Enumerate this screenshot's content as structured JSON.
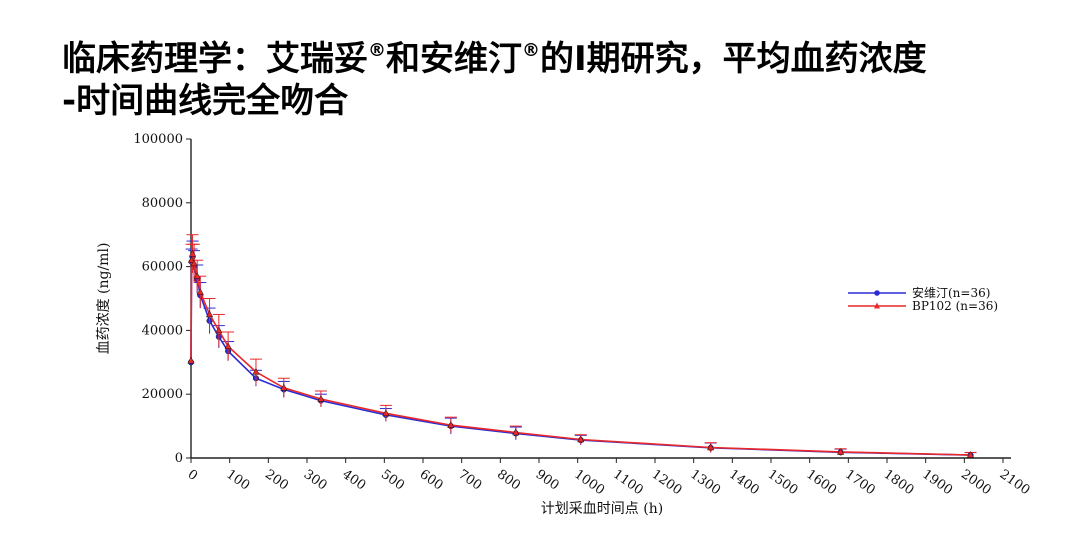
{
  "slide": {
    "title_line1_a": "临床药理学：艾瑞妥",
    "title_line1_b": "和安维汀",
    "title_line1_c": "的I期研究，平均血药浓度",
    "title_line2": "-时间曲线完全吻合",
    "registered_mark": "®"
  },
  "chart_data": {
    "type": "line",
    "title": "",
    "xlabel": "计划采血时间点 (h)",
    "ylabel": "血药浓度 (ng/ml)",
    "xlim": [
      0,
      2100
    ],
    "ylim": [
      0,
      100000
    ],
    "x_ticks": [
      0,
      100,
      200,
      300,
      400,
      500,
      600,
      700,
      800,
      900,
      1000,
      1100,
      1200,
      1300,
      1400,
      1500,
      1600,
      1700,
      1800,
      1900,
      2000,
      2100
    ],
    "y_ticks": [
      0,
      20000,
      40000,
      60000,
      80000,
      100000
    ],
    "grid": false,
    "legend_position": "right",
    "series": [
      {
        "name": "安维汀(n=36)",
        "color": "#2b2bd6",
        "marker": "circle",
        "x": [
          0,
          1.5,
          4,
          8,
          16,
          24,
          48,
          72,
          96,
          168,
          240,
          336,
          504,
          672,
          840,
          1008,
          1344,
          1680,
          2016
        ],
        "y": [
          30000,
          61500,
          63000,
          60000,
          56000,
          51000,
          43000,
          38000,
          33500,
          25000,
          21500,
          18000,
          13500,
          10000,
          7700,
          5600,
          3200,
          1800,
          900
        ],
        "error": [
          0,
          4000,
          5000,
          5000,
          4500,
          4000,
          4000,
          3500,
          3000,
          2500,
          2500,
          2000,
          2000,
          2500,
          2000,
          1500,
          1500,
          1000,
          800
        ]
      },
      {
        "name": "BP102 (n=36)",
        "color": "#e8282a",
        "marker": "triangle",
        "x": [
          0,
          1.5,
          4,
          8,
          16,
          24,
          48,
          72,
          96,
          168,
          240,
          336,
          504,
          672,
          840,
          1008,
          1344,
          1680,
          2016
        ],
        "y": [
          30500,
          62000,
          64000,
          61000,
          57000,
          52000,
          45000,
          40000,
          35000,
          27000,
          22000,
          18500,
          14000,
          10300,
          8000,
          5800,
          3300,
          1900,
          950
        ],
        "error": [
          0,
          5000,
          6000,
          6000,
          5000,
          5000,
          5000,
          5000,
          4500,
          4000,
          3000,
          2500,
          2500,
          2500,
          2000,
          1500,
          1500,
          1000,
          800
        ]
      }
    ]
  }
}
